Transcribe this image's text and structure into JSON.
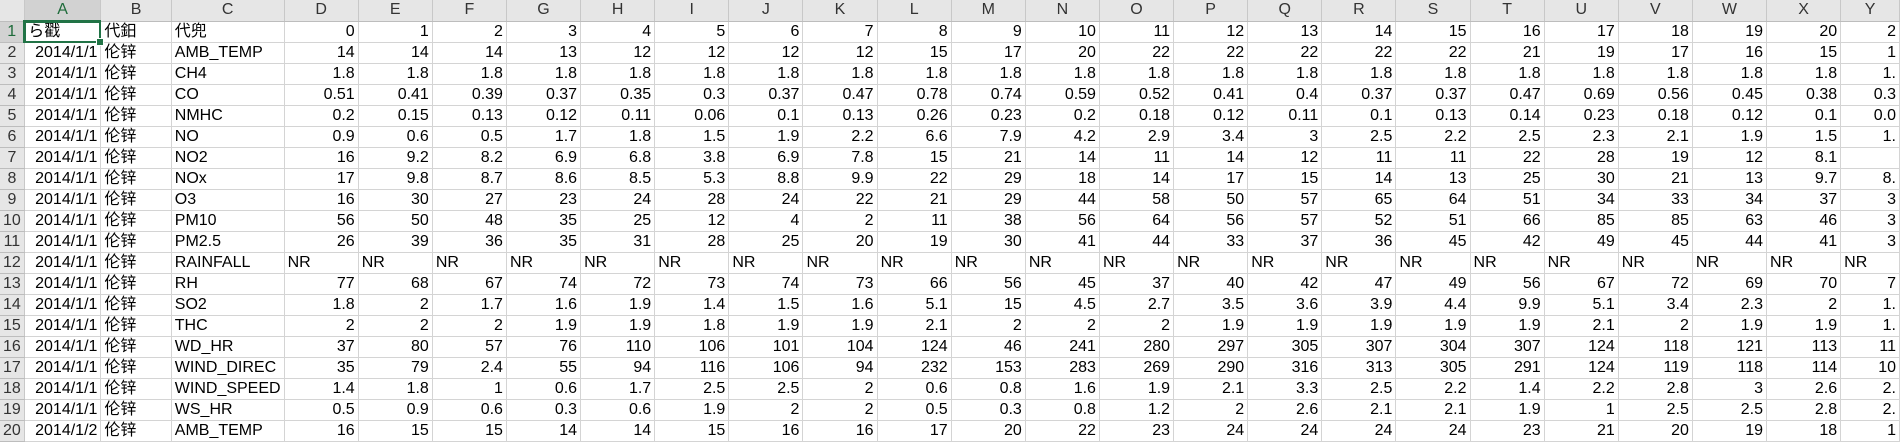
{
  "columns": [
    "A",
    "B",
    "C",
    "D",
    "E",
    "F",
    "G",
    "H",
    "I",
    "J",
    "K",
    "L",
    "M",
    "N",
    "O",
    "P",
    "Q",
    "R",
    "S",
    "T",
    "U",
    "V",
    "W",
    "X",
    "Y"
  ],
  "rows": [
    [
      "ら戳",
      "代鈤",
      "代兜",
      "0",
      "1",
      "2",
      "3",
      "4",
      "5",
      "6",
      "7",
      "8",
      "9",
      "10",
      "11",
      "12",
      "13",
      "14",
      "15",
      "16",
      "17",
      "18",
      "19",
      "20",
      "2"
    ],
    [
      "2014/1/1",
      "伦锌",
      "AMB_TEMP",
      "14",
      "14",
      "14",
      "13",
      "12",
      "12",
      "12",
      "12",
      "15",
      "17",
      "20",
      "22",
      "22",
      "22",
      "22",
      "22",
      "21",
      "19",
      "17",
      "16",
      "15",
      "1"
    ],
    [
      "2014/1/1",
      "伦锌",
      "CH4",
      "1.8",
      "1.8",
      "1.8",
      "1.8",
      "1.8",
      "1.8",
      "1.8",
      "1.8",
      "1.8",
      "1.8",
      "1.8",
      "1.8",
      "1.8",
      "1.8",
      "1.8",
      "1.8",
      "1.8",
      "1.8",
      "1.8",
      "1.8",
      "1.8",
      "1."
    ],
    [
      "2014/1/1",
      "伦锌",
      "CO",
      "0.51",
      "0.41",
      "0.39",
      "0.37",
      "0.35",
      "0.3",
      "0.37",
      "0.47",
      "0.78",
      "0.74",
      "0.59",
      "0.52",
      "0.41",
      "0.4",
      "0.37",
      "0.37",
      "0.47",
      "0.69",
      "0.56",
      "0.45",
      "0.38",
      "0.3"
    ],
    [
      "2014/1/1",
      "伦锌",
      "NMHC",
      "0.2",
      "0.15",
      "0.13",
      "0.12",
      "0.11",
      "0.06",
      "0.1",
      "0.13",
      "0.26",
      "0.23",
      "0.2",
      "0.18",
      "0.12",
      "0.11",
      "0.1",
      "0.13",
      "0.14",
      "0.23",
      "0.18",
      "0.12",
      "0.1",
      "0.0"
    ],
    [
      "2014/1/1",
      "伦锌",
      "NO",
      "0.9",
      "0.6",
      "0.5",
      "1.7",
      "1.8",
      "1.5",
      "1.9",
      "2.2",
      "6.6",
      "7.9",
      "4.2",
      "2.9",
      "3.4",
      "3",
      "2.5",
      "2.2",
      "2.5",
      "2.3",
      "2.1",
      "1.9",
      "1.5",
      "1."
    ],
    [
      "2014/1/1",
      "伦锌",
      "NO2",
      "16",
      "9.2",
      "8.2",
      "6.9",
      "6.8",
      "3.8",
      "6.9",
      "7.8",
      "15",
      "21",
      "14",
      "11",
      "14",
      "12",
      "11",
      "11",
      "22",
      "28",
      "19",
      "12",
      "8.1",
      ""
    ],
    [
      "2014/1/1",
      "伦锌",
      "NOx",
      "17",
      "9.8",
      "8.7",
      "8.6",
      "8.5",
      "5.3",
      "8.8",
      "9.9",
      "22",
      "29",
      "18",
      "14",
      "17",
      "15",
      "14",
      "13",
      "25",
      "30",
      "21",
      "13",
      "9.7",
      "8."
    ],
    [
      "2014/1/1",
      "伦锌",
      "O3",
      "16",
      "30",
      "27",
      "23",
      "24",
      "28",
      "24",
      "22",
      "21",
      "29",
      "44",
      "58",
      "50",
      "57",
      "65",
      "64",
      "51",
      "34",
      "33",
      "34",
      "37",
      "3"
    ],
    [
      "2014/1/1",
      "伦锌",
      "PM10",
      "56",
      "50",
      "48",
      "35",
      "25",
      "12",
      "4",
      "2",
      "11",
      "38",
      "56",
      "64",
      "56",
      "57",
      "52",
      "51",
      "66",
      "85",
      "85",
      "63",
      "46",
      "3"
    ],
    [
      "2014/1/1",
      "伦锌",
      "PM2.5",
      "26",
      "39",
      "36",
      "35",
      "31",
      "28",
      "25",
      "20",
      "19",
      "30",
      "41",
      "44",
      "33",
      "37",
      "36",
      "45",
      "42",
      "49",
      "45",
      "44",
      "41",
      "3"
    ],
    [
      "2014/1/1",
      "伦锌",
      "RAINFALL",
      "NR",
      "NR",
      "NR",
      "NR",
      "NR",
      "NR",
      "NR",
      "NR",
      "NR",
      "NR",
      "NR",
      "NR",
      "NR",
      "NR",
      "NR",
      "NR",
      "NR",
      "NR",
      "NR",
      "NR",
      "NR",
      "NR"
    ],
    [
      "2014/1/1",
      "伦锌",
      "RH",
      "77",
      "68",
      "67",
      "74",
      "72",
      "73",
      "74",
      "73",
      "66",
      "56",
      "45",
      "37",
      "40",
      "42",
      "47",
      "49",
      "56",
      "67",
      "72",
      "69",
      "70",
      "7"
    ],
    [
      "2014/1/1",
      "伦锌",
      "SO2",
      "1.8",
      "2",
      "1.7",
      "1.6",
      "1.9",
      "1.4",
      "1.5",
      "1.6",
      "5.1",
      "15",
      "4.5",
      "2.7",
      "3.5",
      "3.6",
      "3.9",
      "4.4",
      "9.9",
      "5.1",
      "3.4",
      "2.3",
      "2",
      "1."
    ],
    [
      "2014/1/1",
      "伦锌",
      "THC",
      "2",
      "2",
      "2",
      "1.9",
      "1.9",
      "1.8",
      "1.9",
      "1.9",
      "2.1",
      "2",
      "2",
      "2",
      "1.9",
      "1.9",
      "1.9",
      "1.9",
      "1.9",
      "2.1",
      "2",
      "1.9",
      "1.9",
      "1."
    ],
    [
      "2014/1/1",
      "伦锌",
      "WD_HR",
      "37",
      "80",
      "57",
      "76",
      "110",
      "106",
      "101",
      "104",
      "124",
      "46",
      "241",
      "280",
      "297",
      "305",
      "307",
      "304",
      "307",
      "124",
      "118",
      "121",
      "113",
      "11"
    ],
    [
      "2014/1/1",
      "伦锌",
      "WIND_DIREC",
      "35",
      "79",
      "2.4",
      "55",
      "94",
      "116",
      "106",
      "94",
      "232",
      "153",
      "283",
      "269",
      "290",
      "316",
      "313",
      "305",
      "291",
      "124",
      "119",
      "118",
      "114",
      "10"
    ],
    [
      "2014/1/1",
      "伦锌",
      "WIND_SPEED",
      "1.4",
      "1.8",
      "1",
      "0.6",
      "1.7",
      "2.5",
      "2.5",
      "2",
      "0.6",
      "0.8",
      "1.6",
      "1.9",
      "2.1",
      "3.3",
      "2.5",
      "2.2",
      "1.4",
      "2.2",
      "2.8",
      "3",
      "2.6",
      "2."
    ],
    [
      "2014/1/1",
      "伦锌",
      "WS_HR",
      "0.5",
      "0.9",
      "0.6",
      "0.3",
      "0.6",
      "1.9",
      "2",
      "2",
      "0.5",
      "0.3",
      "0.8",
      "1.2",
      "2",
      "2.6",
      "2.1",
      "2.1",
      "1.9",
      "1",
      "2.5",
      "2.5",
      "2.8",
      "2."
    ],
    [
      "2014/1/2",
      "伦锌",
      "AMB_TEMP",
      "16",
      "15",
      "15",
      "14",
      "14",
      "15",
      "16",
      "16",
      "17",
      "20",
      "22",
      "23",
      "24",
      "24",
      "24",
      "24",
      "23",
      "21",
      "20",
      "19",
      "18",
      "1"
    ]
  ]
}
